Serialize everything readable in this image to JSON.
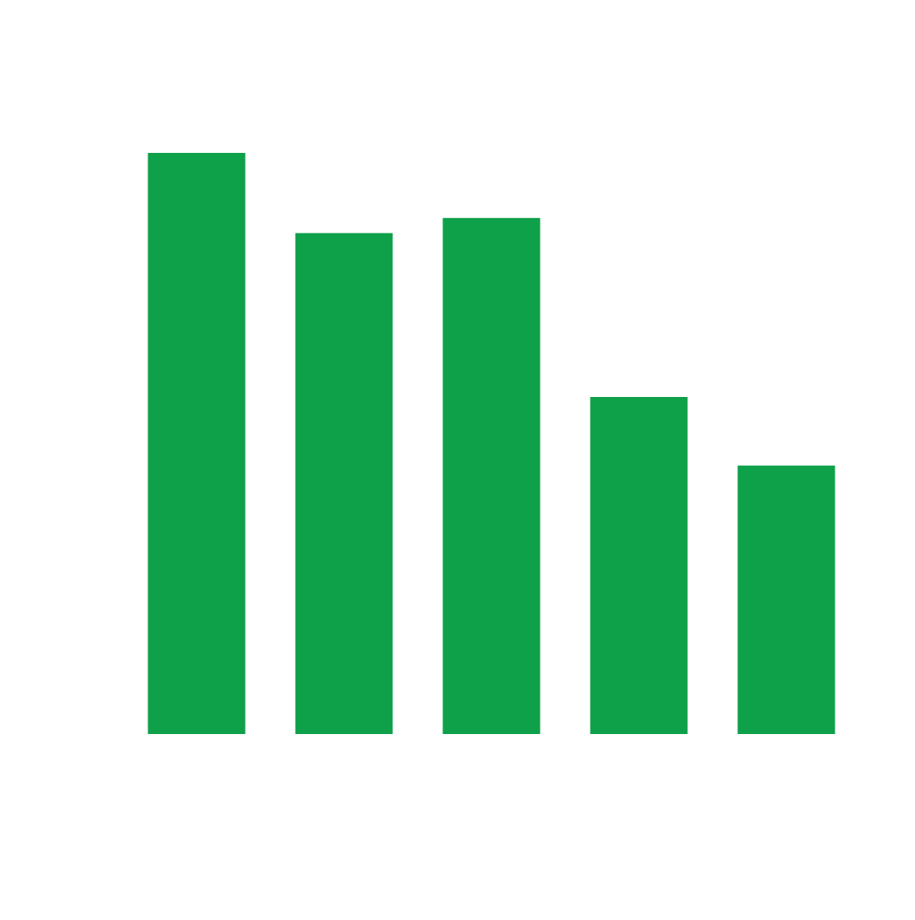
{
  "chart_data": {
    "type": "bar",
    "categories": [
      "",
      "",
      "",
      "",
      ""
    ],
    "values": [
      100,
      86.2,
      88.8,
      58.0,
      46.2
    ],
    "title": "",
    "xlabel": "",
    "ylabel": "",
    "ylim": [
      0,
      100
    ],
    "grid": false,
    "bar_color": "#0fa04a"
  }
}
